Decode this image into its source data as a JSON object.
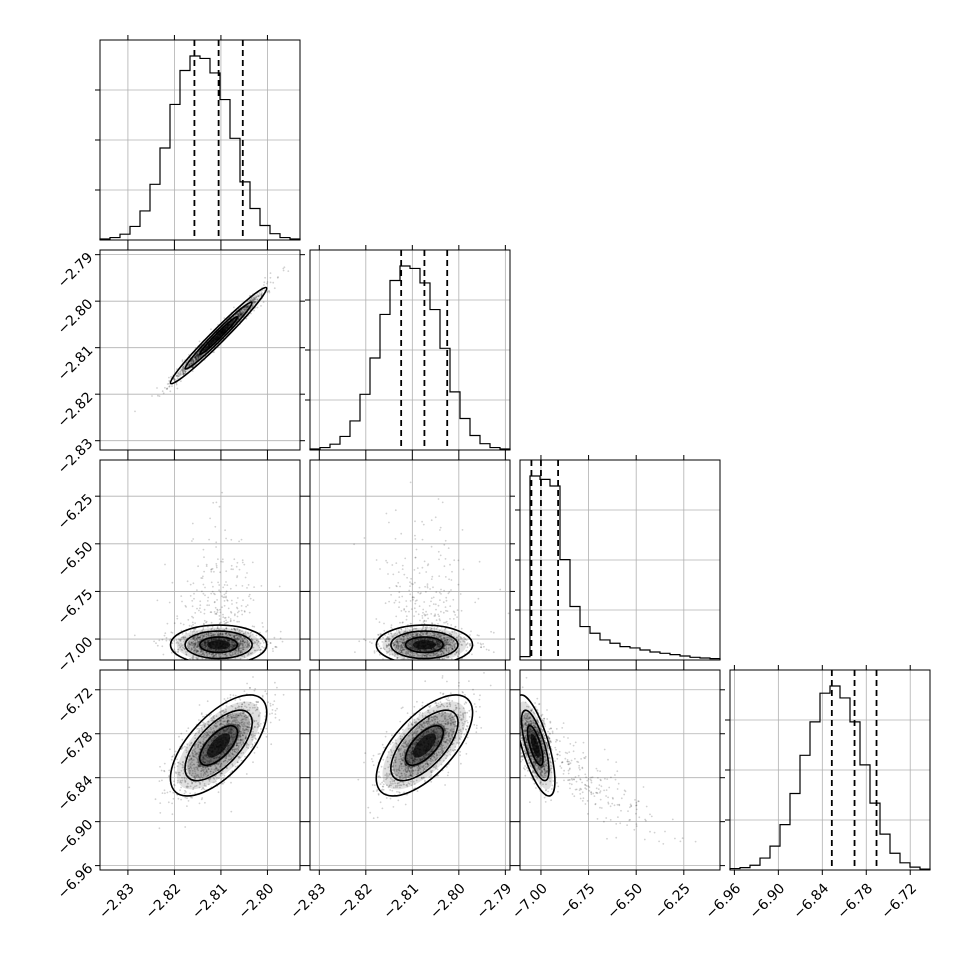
{
  "chart_data": {
    "type": "corner",
    "grid": true,
    "parameters": [
      {
        "range": [
          -2.836,
          -2.793
        ],
        "ticks": [
          -2.83,
          -2.82,
          -2.81,
          -2.8
        ],
        "tick_labels": [
          "−2.83",
          "−2.82",
          "−2.81",
          "−2.80"
        ],
        "quantiles": [
          -2.8157,
          -2.8105,
          -2.8053
        ],
        "mean": -2.8105,
        "sd": 0.0045,
        "hist_counts": [
          0.2,
          0.5,
          1.2,
          2.8,
          6.0,
          11.5,
          19.0,
          28.0,
          35.0,
          38.0,
          37.5,
          34.5,
          29.0,
          21.0,
          12.0,
          6.5,
          3.0,
          1.3,
          0.5,
          0.2
        ]
      },
      {
        "range": [
          -2.832,
          -2.789
        ],
        "ticks": [
          -2.83,
          -2.82,
          -2.81,
          -2.8,
          -2.79
        ],
        "tick_labels": [
          "−2.83",
          "−2.82",
          "−2.81",
          "−2.80",
          "−2.79"
        ],
        "quantiles": [
          -2.8124,
          -2.8074,
          -2.8025
        ],
        "mean": -2.8074,
        "sd": 0.0045,
        "hist_counts": [
          0.2,
          0.5,
          1.2,
          2.8,
          6.0,
          11.5,
          19.0,
          28.0,
          35.0,
          38.0,
          37.5,
          34.5,
          29.0,
          21.0,
          12.0,
          6.5,
          3.0,
          1.3,
          0.5,
          0.2
        ]
      },
      {
        "range": [
          -7.11,
          -6.06
        ],
        "ticks": [
          -7.0,
          -6.75,
          -6.5,
          -6.25
        ],
        "tick_labels": [
          "−7.00",
          "−6.75",
          "−6.50",
          "−6.25"
        ],
        "quantiles": [
          -7.05,
          -7.0,
          -6.91
        ],
        "mean": -7.03,
        "sd": 0.04,
        "hist_counts": [
          0.5,
          27.5,
          27.0,
          26.0,
          15.0,
          8.0,
          5.0,
          4.0,
          3.0,
          2.5,
          2.0,
          1.8,
          1.5,
          1.2,
          1.0,
          0.8,
          0.6,
          0.4,
          0.3,
          0.2
        ]
      },
      {
        "range": [
          -6.966,
          -6.693
        ],
        "ticks": [
          -6.96,
          -6.9,
          -6.84,
          -6.78,
          -6.72
        ],
        "tick_labels": [
          "−6.96",
          "−6.90",
          "−6.84",
          "−6.78",
          "−6.72"
        ],
        "quantiles": [
          -6.827,
          -6.796,
          -6.766
        ],
        "mean": -6.796,
        "sd": 0.03,
        "hist_counts": [
          0.3,
          0.5,
          1.0,
          2.5,
          5.0,
          9.5,
          16.0,
          24.0,
          31.0,
          37.0,
          38.5,
          36.0,
          31.0,
          22.0,
          14.0,
          7.5,
          3.5,
          1.5,
          0.6,
          0.2
        ]
      }
    ],
    "pairs": [
      {
        "row": 1,
        "col": 0,
        "correlation": 0.98
      },
      {
        "row": 2,
        "col": 0,
        "correlation": 0.0
      },
      {
        "row": 2,
        "col": 1,
        "correlation": 0.0
      },
      {
        "row": 3,
        "col": 0,
        "correlation": 0.65
      },
      {
        "row": 3,
        "col": 1,
        "correlation": 0.65
      },
      {
        "row": 3,
        "col": 2,
        "correlation": -0.7
      }
    ]
  }
}
